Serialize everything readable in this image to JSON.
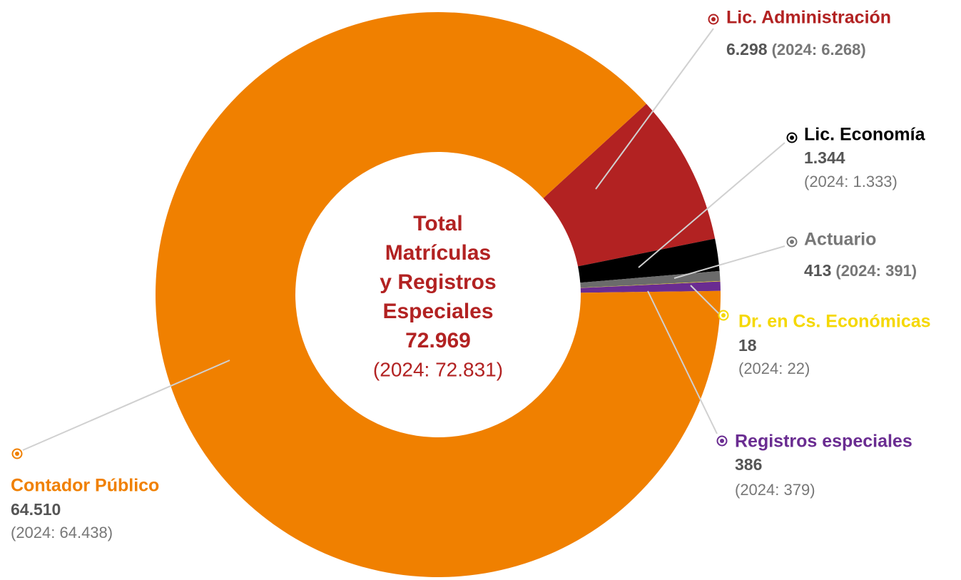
{
  "chart_data": {
    "type": "donut",
    "center_title": [
      "Total",
      "Matrículas",
      "y Registros",
      "Especiales"
    ],
    "center_value": "72.969",
    "center_previous": "(2024: 72.831)",
    "categories": [
      "Lic. Administración",
      "Lic.  Economía",
      "Actuario",
      "Dr. en Cs. Económicas",
      "Registros especiales",
      "Contador Público"
    ],
    "values": [
      6298,
      1344,
      413,
      18,
      386,
      64510
    ],
    "value_labels": [
      "6.298",
      "1.344",
      "413",
      "18",
      "386",
      "64.510"
    ],
    "previous_labels": [
      "(2024: 6.268)",
      "(2024: 1.333)",
      "(2024: 391)",
      "(2024: 22)",
      "(2024: 379)",
      "(2024: 64.438)"
    ],
    "colors": [
      "#b22222",
      "#000000",
      "#6b6b6b",
      "#f5d800",
      "#6a2c91",
      "#f08000"
    ]
  }
}
